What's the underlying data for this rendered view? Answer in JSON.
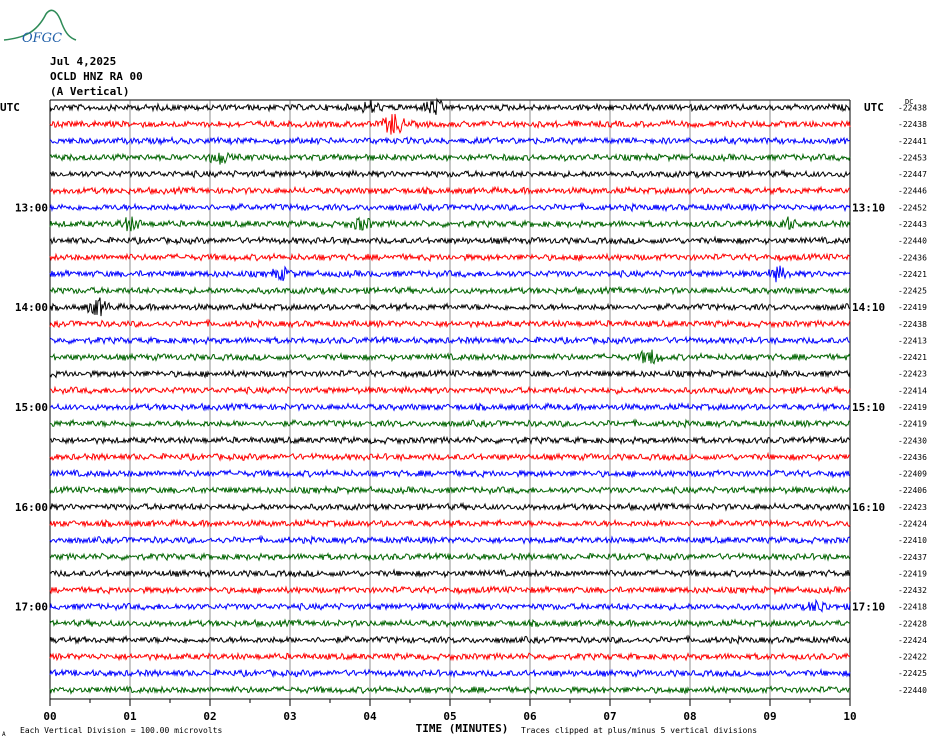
{
  "header": {
    "date": "Jul 4,2025",
    "station": "OCLD HNZ RA 00",
    "component": "(A Vertical)",
    "logo_text": "OFGC"
  },
  "left_tz": "UTC",
  "right_tz": "UTC",
  "dc_label": "DC",
  "xlabel": "TIME (MINUTES)",
  "footnote_left": "Each Vertical Division =  100.00 microvolts",
  "footnote_right": "Traces clipped at plus/minus 5 vertical divisions",
  "footnote_mark": "A",
  "colors": {
    "black": "#000000",
    "red": "#ff0000",
    "blue": "#0000ff",
    "green": "#006400",
    "grid": "#000000"
  },
  "chart_data": {
    "type": "line",
    "xlim": [
      0,
      10
    ],
    "x_ticks": [
      "00",
      "01",
      "02",
      "03",
      "04",
      "05",
      "06",
      "07",
      "08",
      "09",
      "10"
    ],
    "trace_count": 36,
    "trace_color_cycle": [
      "black",
      "red",
      "blue",
      "green"
    ],
    "left_hour_labels": [
      {
        "trace": 6,
        "label": "13:00"
      },
      {
        "trace": 12,
        "label": "14:00"
      },
      {
        "trace": 18,
        "label": "15:00"
      },
      {
        "trace": 24,
        "label": "16:00"
      },
      {
        "trace": 30,
        "label": "17:00"
      }
    ],
    "right_hour_labels": [
      {
        "trace": 6,
        "label": "13:10"
      },
      {
        "trace": 12,
        "label": "14:10"
      },
      {
        "trace": 18,
        "label": "15:10"
      },
      {
        "trace": 24,
        "label": "16:10"
      },
      {
        "trace": 30,
        "label": "17:10"
      }
    ],
    "dc_offsets": [
      "-22438",
      "-22438",
      "-22441",
      "-22453",
      "-22447",
      "-22446",
      "-22452",
      "-22443",
      "-22440",
      "-22436",
      "-22421",
      "-22425",
      "-22419",
      "-22438",
      "-22413",
      "-22421",
      "-22423",
      "-22414",
      "-22419",
      "-22419",
      "-22430",
      "-22436",
      "-22409",
      "-22406",
      "-22423",
      "-22424",
      "-22410",
      "-22437",
      "-22419",
      "-22432",
      "-22418",
      "-22428",
      "-22424",
      "-22422",
      "-22425",
      "-22440"
    ],
    "events": [
      {
        "trace": 1,
        "minute": 4.3,
        "amp": 2.2
      },
      {
        "trace": 0,
        "minute": 4.8,
        "amp": 1.5
      },
      {
        "trace": 0,
        "minute": 4.0,
        "amp": 1.0
      },
      {
        "trace": 12,
        "minute": 0.6,
        "amp": 1.6
      },
      {
        "trace": 7,
        "minute": 1.0,
        "amp": 1.2
      },
      {
        "trace": 7,
        "minute": 3.9,
        "amp": 1.1
      },
      {
        "trace": 7,
        "minute": 9.2,
        "amp": 1.1
      },
      {
        "trace": 15,
        "minute": 7.5,
        "amp": 1.4
      },
      {
        "trace": 10,
        "minute": 9.1,
        "amp": 1.2
      },
      {
        "trace": 10,
        "minute": 2.9,
        "amp": 1.0
      },
      {
        "trace": 3,
        "minute": 2.1,
        "amp": 1.0
      },
      {
        "trace": 30,
        "minute": 9.6,
        "amp": 1.0
      }
    ]
  }
}
